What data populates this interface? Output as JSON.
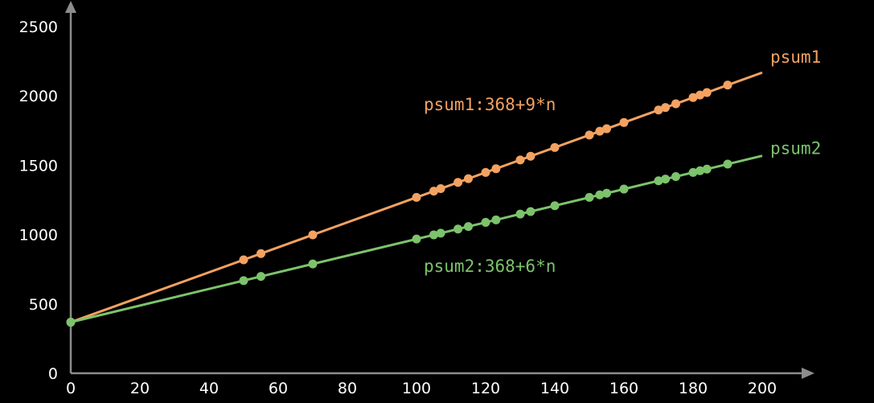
{
  "chart_data": {
    "type": "line",
    "title": "",
    "xlabel": "",
    "ylabel": "",
    "xlim": [
      0,
      200
    ],
    "ylim": [
      0,
      2500
    ],
    "x_ticks": [
      "0",
      "20",
      "40",
      "60",
      "80",
      "100",
      "120",
      "140",
      "160",
      "180",
      "200"
    ],
    "y_ticks": [
      "0",
      "500",
      "1000",
      "1500",
      "2000",
      "2500"
    ],
    "grid": false,
    "legend": "line-end labels",
    "colors": {
      "background": "#000000",
      "axis": "#8c8c8c",
      "psum1": "#f4a261",
      "psum2": "#7cc36b"
    },
    "series": [
      {
        "name": "psum1",
        "formula_label": "psum1:368+9*n",
        "color": "#f4a261",
        "line": {
          "x": [
            0,
            200
          ],
          "y": [
            368,
            2168
          ]
        },
        "points": {
          "x": [
            0,
            50,
            55,
            70,
            100,
            105,
            107,
            112,
            115,
            120,
            123,
            130,
            133,
            140,
            150,
            153,
            155,
            160,
            170,
            172,
            175,
            180,
            182,
            184,
            190
          ],
          "y": [
            368,
            818,
            863,
            998,
            1268,
            1313,
            1331,
            1376,
            1403,
            1448,
            1475,
            1538,
            1565,
            1628,
            1718,
            1745,
            1763,
            1808,
            1898,
            1916,
            1943,
            1988,
            2006,
            2024,
            2078
          ]
        }
      },
      {
        "name": "psum2",
        "formula_label": "psum2:368+6*n",
        "color": "#7cc36b",
        "line": {
          "x": [
            0,
            200
          ],
          "y": [
            368,
            1568
          ]
        },
        "points": {
          "x": [
            0,
            50,
            55,
            70,
            100,
            105,
            107,
            112,
            115,
            120,
            123,
            130,
            133,
            140,
            150,
            153,
            155,
            160,
            170,
            172,
            175,
            180,
            182,
            184,
            190
          ],
          "y": [
            368,
            668,
            698,
            788,
            968,
            998,
            1010,
            1040,
            1058,
            1088,
            1106,
            1148,
            1166,
            1208,
            1268,
            1286,
            1298,
            1328,
            1388,
            1400,
            1418,
            1448,
            1460,
            1472,
            1508
          ]
        }
      }
    ]
  }
}
